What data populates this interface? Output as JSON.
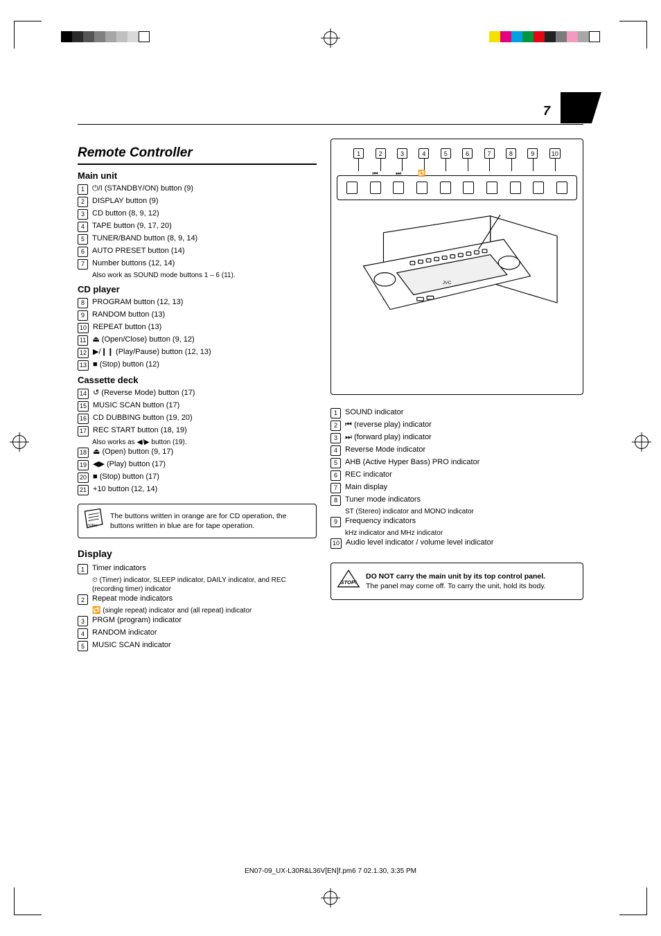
{
  "page_number": "7",
  "section_title": "Remote Controller",
  "left_column": {
    "group_main_unit": {
      "title": "Main unit",
      "items": [
        {
          "n": "1",
          "text": "(STANDBY/ON) button (9)",
          "prefix_sym": "⏻/I"
        },
        {
          "n": "2",
          "text": "DISPLAY button (9)"
        },
        {
          "n": "3",
          "text": "CD button (8, 9, 12)"
        },
        {
          "n": "4",
          "text": "TAPE button (9, 17, 20)"
        },
        {
          "n": "5",
          "text": "TUNER/BAND button (8, 9, 14)"
        },
        {
          "n": "6",
          "text": "AUTO PRESET button (14)"
        },
        {
          "n": "7",
          "text": "Number buttons (12, 14)",
          "sub": "Also work as SOUND mode buttons 1 – 6 (11)."
        }
      ]
    },
    "group_cd": {
      "title": "CD player",
      "items": [
        {
          "n": "8",
          "text": "PROGRAM button (12, 13)"
        },
        {
          "n": "9",
          "text": "RANDOM button (13)"
        },
        {
          "n": "10",
          "text": "REPEAT button (13)"
        },
        {
          "n": "11",
          "text": "(Open/Close) button (9, 12)",
          "prefix_sym": "⏏"
        },
        {
          "n": "12",
          "text": "(Play/Pause) button (12, 13)",
          "prefix_sym": "▶/❙❙"
        },
        {
          "n": "13",
          "text": "(Stop) button (12)",
          "prefix_sym": "■"
        }
      ]
    },
    "group_tape": {
      "title": "Cassette deck",
      "items": [
        {
          "n": "14",
          "text": "(Reverse Mode) button (17)",
          "prefix_sym": "↺"
        },
        {
          "n": "15",
          "text": "MUSIC SCAN button (17)"
        },
        {
          "n": "16",
          "text": "CD DUBBING button (19, 20)"
        },
        {
          "n": "17",
          "text": "REC START button (18, 19)",
          "sub": "Also works as ◀/▶ button (19)."
        },
        {
          "n": "18",
          "text": "(Open) button (9, 17)",
          "prefix_sym": "⏏"
        },
        {
          "n": "19",
          "text": "(Play) button (17)",
          "prefix_sym": "◀▶"
        },
        {
          "n": "20",
          "text": "(Stop) button (17)",
          "prefix_sym": "■"
        },
        {
          "n": "21",
          "text": "+10 button (12, 14)"
        }
      ]
    },
    "note_box": "The buttons written in orange are for CD operation, the buttons written in blue are for tape operation.",
    "display": {
      "title": "Display",
      "items": [
        {
          "n": "1",
          "text": "Timer indicators",
          "sub": "(Timer) indicator, SLEEP indicator, DAILY indicator, and REC (recording timer) indicator",
          "sub_has_sym": "⏲"
        },
        {
          "n": "2",
          "text": "Repeat mode indicators",
          "sub": "(single repeat) indicator and         (all repeat) indicator",
          "sub_has_sym": "🔁"
        },
        {
          "n": "3",
          "text": "PRGM (program) indicator"
        },
        {
          "n": "4",
          "text": "RANDOM indicator"
        },
        {
          "n": "5",
          "text": "MUSIC SCAN indicator"
        }
      ]
    }
  },
  "right_column": {
    "diagram_numbers": [
      "1",
      "2",
      "3",
      "4",
      "5",
      "6",
      "7",
      "8",
      "9",
      "10"
    ],
    "right_list": [
      {
        "n": "1",
        "text": "SOUND indicator"
      },
      {
        "n": "2",
        "text": "(reverse play) indicator",
        "prefix_sym": "⏮"
      },
      {
        "n": "3",
        "text": "(forward play) indicator",
        "prefix_sym": "⏭"
      },
      {
        "n": "4",
        "text": "Reverse Mode indicator"
      },
      {
        "n": "5",
        "text": "AHB (Active Hyper Bass) PRO indicator"
      },
      {
        "n": "6",
        "text": "REC indicator"
      },
      {
        "n": "7",
        "text": "Main display"
      },
      {
        "n": "8",
        "text": "Tuner mode indicators",
        "sub": "ST (Stereo) indicator and MONO indicator"
      },
      {
        "n": "9",
        "text": "Frequency indicators",
        "sub": "kHz indicator and MHz indicator"
      },
      {
        "n": "10",
        "text": "Audio level indicator / volume level indicator"
      }
    ],
    "stop_box": {
      "line1": "DO NOT carry the main unit by its top control panel.",
      "line2": "The panel may come off. To carry the unit, hold its body."
    }
  },
  "colors": {
    "grayscale": [
      "#000000",
      "#2b2b2b",
      "#555555",
      "#808080",
      "#a6a6a6",
      "#c0c0c0",
      "#d9d9d9",
      "#ffffff"
    ],
    "color_bar": [
      "#f5e100",
      "#e6007e",
      "#00a0e3",
      "#009640",
      "#e30613",
      "#222222",
      "#7c7c7c",
      "#f29ac0",
      "#a7a7a7",
      "#ffffff"
    ]
  },
  "footer": "EN07-09_UX-L30R&L36V[EN]f.pm6        7        02.1.30, 3:35 PM"
}
